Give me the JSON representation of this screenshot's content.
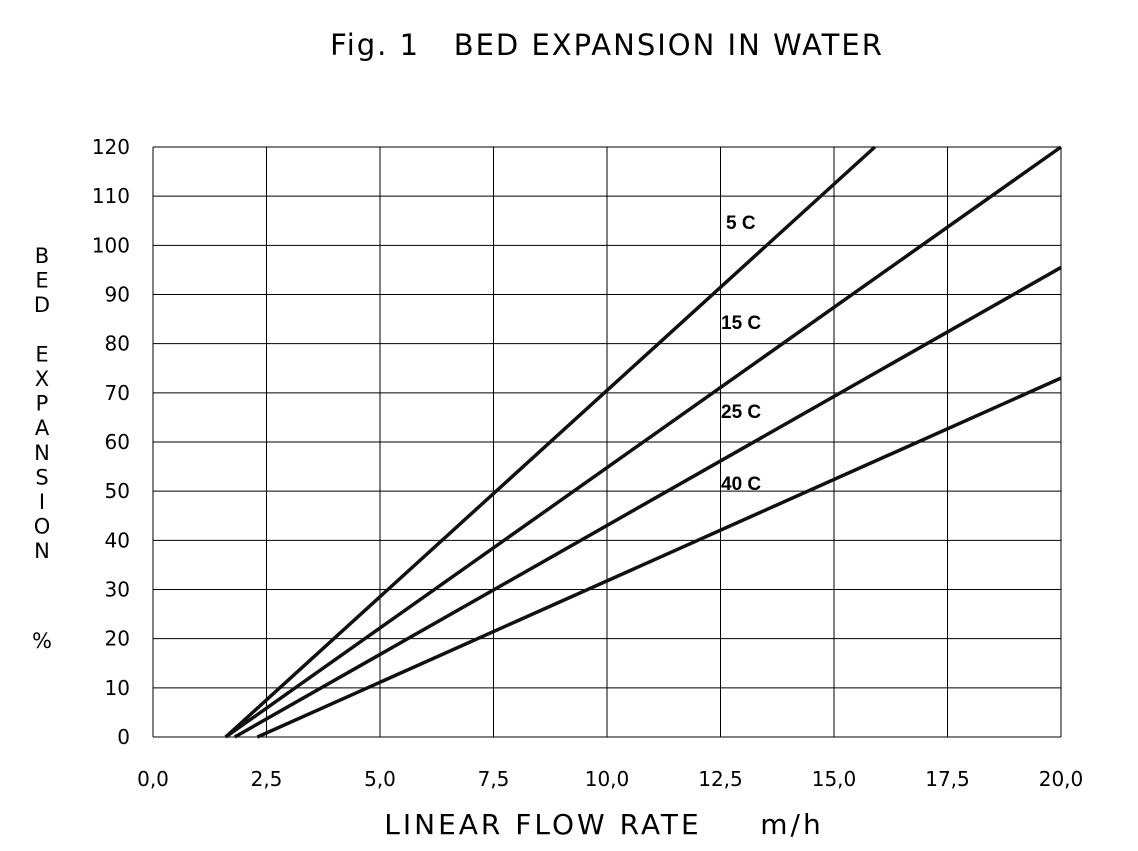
{
  "chart_data": {
    "type": "line",
    "title": "Fig. 1   BED EXPANSION IN WATER",
    "xlabel": "LINEAR FLOW RATE",
    "xunit": "m/h",
    "ylabel": "BED EXPANSION",
    "yunit": "%",
    "xlim": [
      0,
      20
    ],
    "ylim": [
      0,
      120
    ],
    "xticks": [
      "0,0",
      "2,5",
      "5,0",
      "7,5",
      "10,0",
      "12,5",
      "15,0",
      "17,5",
      "20,0"
    ],
    "yticks": [
      "0",
      "10",
      "20",
      "30",
      "40",
      "50",
      "60",
      "70",
      "80",
      "90",
      "100",
      "110",
      "120"
    ],
    "grid": true,
    "legend": "inline labels",
    "series": [
      {
        "name": "5 C",
        "x": [
          1.6,
          15.9
        ],
        "y": [
          0,
          120
        ]
      },
      {
        "name": "15 C",
        "x": [
          1.6,
          20.0
        ],
        "y": [
          0,
          120
        ]
      },
      {
        "name": "25 C",
        "x": [
          1.8,
          20.0
        ],
        "y": [
          0,
          95.5
        ]
      },
      {
        "name": "40 C",
        "x": [
          2.3,
          20.0
        ],
        "y": [
          0,
          73
        ]
      }
    ],
    "colors": {
      "line": "#111111",
      "grid": "#000000"
    }
  }
}
